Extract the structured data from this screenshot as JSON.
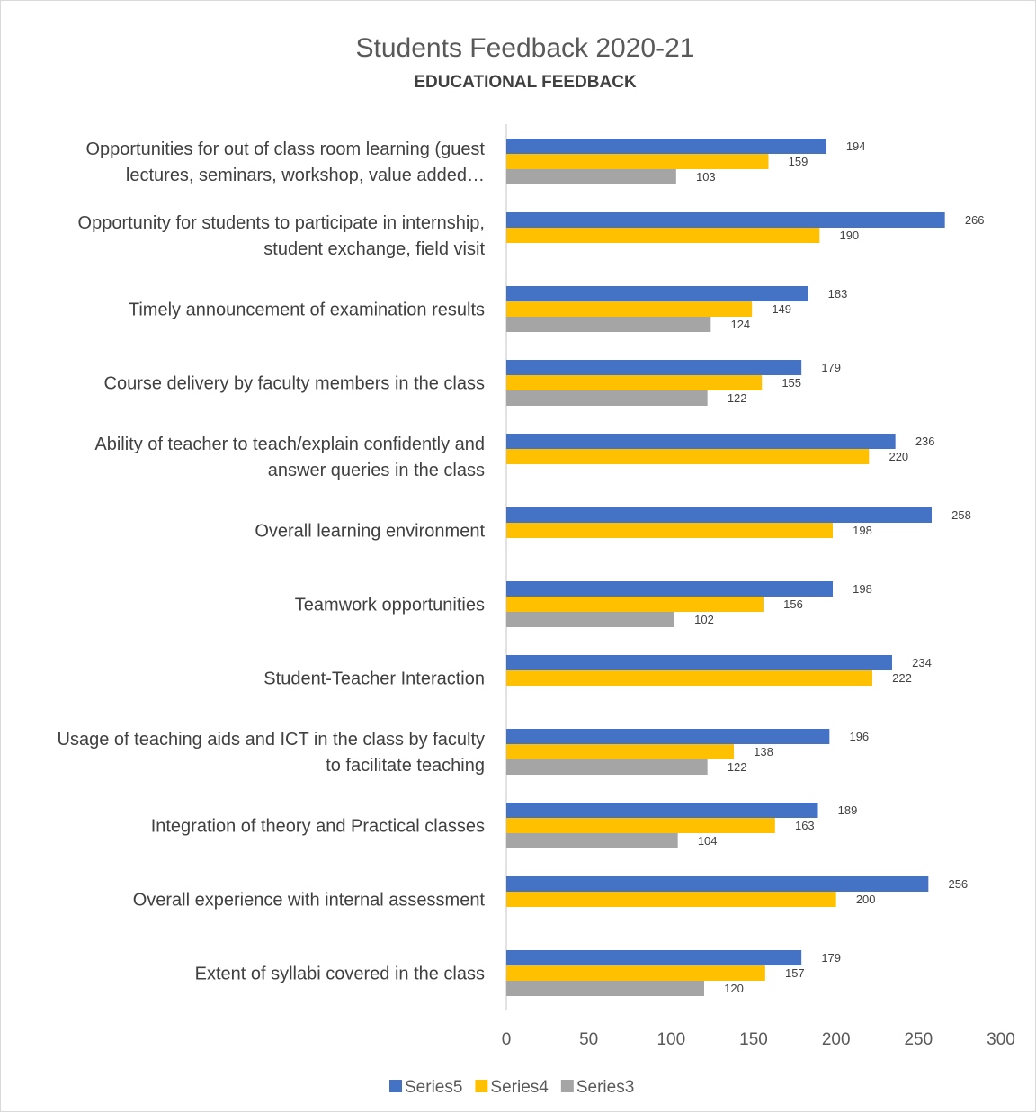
{
  "chart_data": {
    "type": "bar",
    "orientation": "horizontal",
    "title": "Students Feedback 2020-21",
    "subtitle": "EDUCATIONAL FEEDBACK",
    "xlim": [
      0,
      300
    ],
    "x_ticks": [
      "0",
      "50",
      "100",
      "150",
      "200",
      "250",
      "300"
    ],
    "grid": false,
    "legend_position": "bottom",
    "categories": [
      [
        "Opportunities for out of class room learning (guest",
        "lectures, seminars, workshop, value added…"
      ],
      [
        "Opportunity for students to participate in internship,",
        "student exchange, field visit"
      ],
      [
        "Timely announcement of examination results"
      ],
      [
        "Course delivery by faculty members in the class"
      ],
      [
        "Ability of teacher to teach/explain confidently and",
        "answer queries in the class"
      ],
      [
        "Overall learning environment"
      ],
      [
        "Teamwork opportunities"
      ],
      [
        "Student-Teacher Interaction"
      ],
      [
        "Usage of teaching aids and ICT in the class by faculty",
        "to facilitate teaching"
      ],
      [
        "Integration of theory and Practical classes"
      ],
      [
        "Overall experience with internal assessment"
      ],
      [
        "Extent of syllabi covered in the class"
      ]
    ],
    "series": [
      {
        "name": "Series5",
        "color": "#4472c4",
        "values": [
          194,
          266,
          183,
          179,
          236,
          258,
          198,
          234,
          196,
          189,
          256,
          179
        ]
      },
      {
        "name": "Series4",
        "color": "#ffc000",
        "values": [
          159,
          190,
          149,
          155,
          220,
          198,
          156,
          222,
          138,
          163,
          200,
          157
        ]
      },
      {
        "name": "Series3",
        "color": "#a5a5a5",
        "values": [
          103,
          null,
          124,
          122,
          null,
          null,
          102,
          null,
          122,
          104,
          null,
          120
        ]
      }
    ]
  }
}
